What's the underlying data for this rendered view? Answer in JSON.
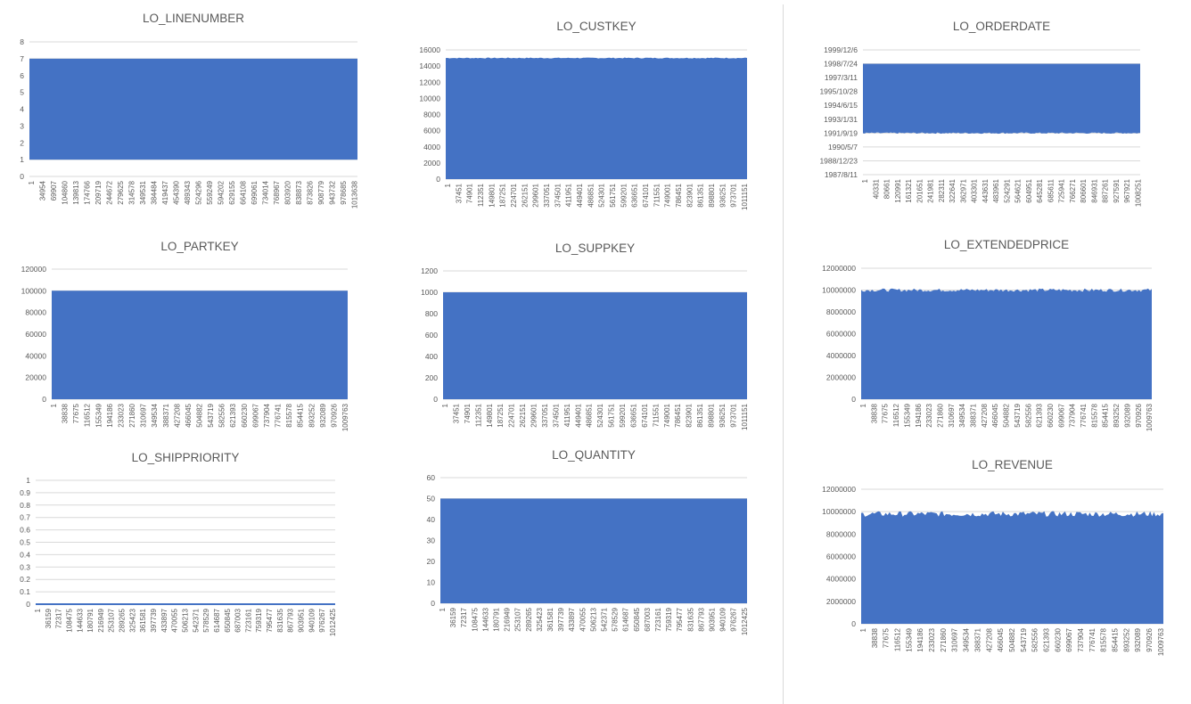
{
  "colors": {
    "bar": "#4472c4",
    "grid": "#d9d9d9",
    "text": "#595959"
  },
  "chart_data": [
    {
      "type": "bar",
      "title": "LO_LINENUMBER",
      "yticks": [
        "0",
        "1",
        "2",
        "3",
        "4",
        "5",
        "6",
        "7",
        "8"
      ],
      "ylim": [
        0,
        8
      ],
      "band": [
        1,
        7
      ],
      "upper_jitter": 0,
      "lower_jitter": 0,
      "xticks": [
        "1",
        "34954",
        "69907",
        "104860",
        "139813",
        "174766",
        "209719",
        "244672",
        "279625",
        "314578",
        "349531",
        "384484",
        "419437",
        "454390",
        "489343",
        "524296",
        "559249",
        "594202",
        "629155",
        "664108",
        "699061",
        "734014",
        "768967",
        "803920",
        "838873",
        "873826",
        "908779",
        "943732",
        "978685",
        "1013638"
      ]
    },
    {
      "type": "bar",
      "title": "LO_CUSTKEY",
      "yticks": [
        "0",
        "2000",
        "4000",
        "6000",
        "8000",
        "10000",
        "12000",
        "14000",
        "16000"
      ],
      "ylim": [
        0,
        16000
      ],
      "band": [
        0,
        15000
      ],
      "upper_jitter": 60,
      "lower_jitter": 0,
      "xticks": [
        "1",
        "37451",
        "74901",
        "112351",
        "149801",
        "187251",
        "224701",
        "262151",
        "299601",
        "337051",
        "374501",
        "411951",
        "449401",
        "486851",
        "524301",
        "561751",
        "599201",
        "636651",
        "674101",
        "711551",
        "749001",
        "786451",
        "823901",
        "861351",
        "898801",
        "936251",
        "973701",
        "1011151"
      ]
    },
    {
      "type": "bar",
      "title": "LO_ORDERDATE",
      "yticks": [
        "1987/8/11",
        "1988/12/23",
        "1990/5/7",
        "1991/9/19",
        "1993/1/31",
        "1994/6/15",
        "1995/10/28",
        "1997/3/11",
        "1998/7/24",
        "1999/12/6"
      ],
      "band": [
        3,
        8
      ],
      "upper_jitter": 0,
      "lower_jitter": 0.05,
      "ylim": [
        1987.61,
        1999.93
      ],
      "xticks": [
        "1",
        "40331",
        "80661",
        "120991",
        "161321",
        "201651",
        "241981",
        "282311",
        "322641",
        "362971",
        "403301",
        "443631",
        "483961",
        "524291",
        "564621",
        "604951",
        "645281",
        "685611",
        "725941",
        "766271",
        "806601",
        "846931",
        "887261",
        "927591",
        "967921",
        "1008251"
      ]
    },
    {
      "type": "bar",
      "title": "LO_PARTKEY",
      "yticks": [
        "0",
        "20000",
        "40000",
        "60000",
        "80000",
        "100000",
        "120000"
      ],
      "ylim": [
        0,
        120000
      ],
      "band": [
        0,
        100000
      ],
      "upper_jitter": 0,
      "lower_jitter": 0,
      "xticks": [
        "1",
        "38838",
        "77675",
        "116512",
        "155349",
        "194186",
        "233023",
        "271860",
        "310697",
        "349534",
        "388371",
        "427208",
        "466045",
        "504882",
        "543719",
        "582556",
        "621393",
        "660230",
        "699067",
        "737904",
        "776741",
        "815578",
        "854415",
        "893252",
        "932089",
        "970926",
        "1009763"
      ]
    },
    {
      "type": "bar",
      "title": "LO_SUPPKEY",
      "yticks": [
        "0",
        "200",
        "400",
        "600",
        "800",
        "1000",
        "1200"
      ],
      "ylim": [
        0,
        1200
      ],
      "band": [
        0,
        1000
      ],
      "upper_jitter": 0,
      "lower_jitter": 0,
      "xticks": [
        "1",
        "37451",
        "74901",
        "112351",
        "149801",
        "187251",
        "224701",
        "262151",
        "299601",
        "337051",
        "374501",
        "411951",
        "449401",
        "486851",
        "524301",
        "561751",
        "599201",
        "636651",
        "674101",
        "711551",
        "749001",
        "786451",
        "823901",
        "861351",
        "898801",
        "936251",
        "973701",
        "1011151"
      ]
    },
    {
      "type": "bar",
      "title": "LO_EXTENDEDPRICE",
      "yticks": [
        "0",
        "2000000",
        "4000000",
        "6000000",
        "8000000",
        "10000000",
        "12000000"
      ],
      "ylim": [
        0,
        12000000
      ],
      "band": [
        0,
        10000000
      ],
      "upper_jitter": 150000,
      "lower_jitter": 0,
      "xticks": [
        "1",
        "38838",
        "77675",
        "116512",
        "155349",
        "194186",
        "233023",
        "271860",
        "310697",
        "349534",
        "388371",
        "427208",
        "466045",
        "504882",
        "543719",
        "582556",
        "621393",
        "660230",
        "699067",
        "737904",
        "776741",
        "815578",
        "854415",
        "893252",
        "932089",
        "970926",
        "1009763"
      ]
    },
    {
      "type": "bar",
      "title": "LO_SHIPPRIORITY",
      "yticks": [
        "0",
        "0.1",
        "0.2",
        "0.3",
        "0.4",
        "0.5",
        "0.6",
        "0.7",
        "0.8",
        "0.9",
        "1"
      ],
      "ylim": [
        0,
        1
      ],
      "band": [
        0,
        0
      ],
      "upper_jitter": 0,
      "lower_jitter": 0,
      "xticks": [
        "1",
        "36159",
        "72317",
        "108475",
        "144633",
        "180791",
        "216949",
        "253107",
        "289265",
        "325423",
        "361581",
        "397739",
        "433897",
        "470055",
        "506213",
        "542371",
        "578529",
        "614687",
        "650845",
        "687003",
        "723161",
        "759319",
        "795477",
        "831635",
        "867793",
        "903951",
        "940109",
        "976267",
        "1012425"
      ]
    },
    {
      "type": "bar",
      "title": "LO_QUANTITY",
      "yticks": [
        "0",
        "10",
        "20",
        "30",
        "40",
        "50",
        "60"
      ],
      "ylim": [
        0,
        60
      ],
      "band": [
        0,
        50
      ],
      "upper_jitter": 0,
      "lower_jitter": 0,
      "xticks": [
        "1",
        "36159",
        "72317",
        "108475",
        "144633",
        "180791",
        "216949",
        "253107",
        "289265",
        "325423",
        "361581",
        "397739",
        "433897",
        "470055",
        "506213",
        "542371",
        "578529",
        "614687",
        "650845",
        "687003",
        "723161",
        "759319",
        "795477",
        "831635",
        "867793",
        "903951",
        "940109",
        "976267",
        "1012425"
      ]
    },
    {
      "type": "bar",
      "title": "LO_REVENUE",
      "yticks": [
        "0",
        "2000000",
        "4000000",
        "6000000",
        "8000000",
        "10000000",
        "12000000"
      ],
      "ylim": [
        0,
        12000000
      ],
      "band": [
        0,
        9800000
      ],
      "upper_jitter": 250000,
      "lower_jitter": 0,
      "xticks": [
        "1",
        "38838",
        "77675",
        "116512",
        "155349",
        "194186",
        "233023",
        "271860",
        "310697",
        "349534",
        "388371",
        "427208",
        "466045",
        "504882",
        "543719",
        "582556",
        "621393",
        "660230",
        "699067",
        "737904",
        "776741",
        "815578",
        "854415",
        "893252",
        "932089",
        "970926",
        "1009763"
      ]
    }
  ]
}
